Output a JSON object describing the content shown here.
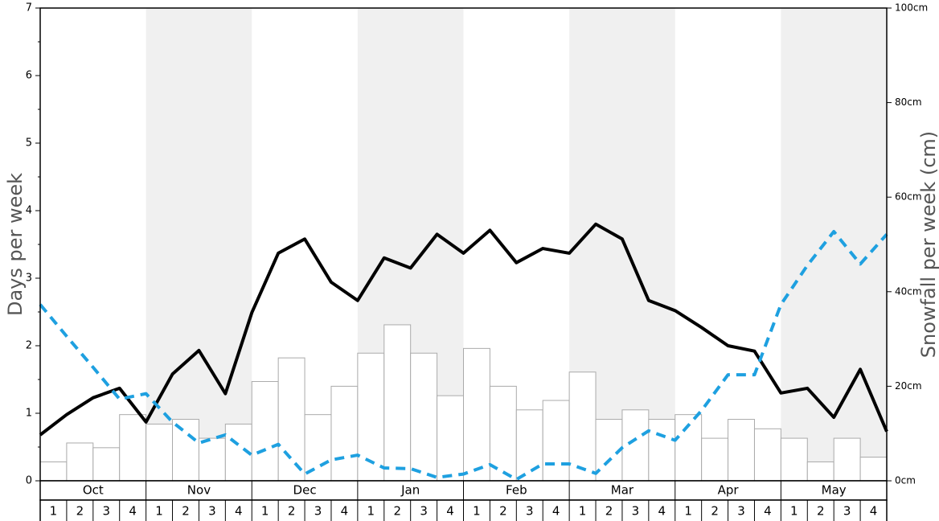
{
  "chart_data": {
    "type": "bar-line",
    "ylabel": "Days per week",
    "y2label": "Snowfall per week (cm)",
    "months": [
      "Oct",
      "Nov",
      "Dec",
      "Jan",
      "Feb",
      "Mar",
      "Apr",
      "May"
    ],
    "categories": [
      "1",
      "2",
      "3",
      "4",
      "1",
      "2",
      "3",
      "4",
      "1",
      "2",
      "3",
      "4",
      "1",
      "2",
      "3",
      "4",
      "1",
      "2",
      "3",
      "4",
      "1",
      "2",
      "3",
      "4",
      "1",
      "2",
      "3",
      "4",
      "1",
      "2",
      "3",
      "4"
    ],
    "ylim": [
      0,
      7
    ],
    "yticks": [
      0,
      1,
      2,
      3,
      4,
      5,
      6,
      7
    ],
    "yminorticks": [
      0.5,
      1.5,
      2.5,
      3.5,
      4.5,
      5.5,
      6.5
    ],
    "y2lim": [
      0,
      100
    ],
    "y2ticks": [
      {
        "value": 0,
        "label": "0cm"
      },
      {
        "value": 20,
        "label": "20cm"
      },
      {
        "value": 40,
        "label": "40cm"
      },
      {
        "value": 60,
        "label": "60cm"
      },
      {
        "value": 80,
        "label": "80cm"
      },
      {
        "value": 100,
        "label": "100cm"
      }
    ],
    "xlim": [
      0,
      32
    ],
    "shade_color": "#f0f0f0",
    "bars": {
      "axis": "y2",
      "color": "#ffffff",
      "stroke": "#aaaaaa",
      "values": [
        4,
        8,
        7,
        14,
        12,
        13,
        9,
        12,
        21,
        26,
        14,
        20,
        27,
        33,
        27,
        18,
        28,
        20,
        15,
        17,
        23,
        13,
        15,
        13,
        14,
        9,
        13,
        11,
        9,
        4,
        9,
        5
      ]
    },
    "series": [
      {
        "color": "#000000",
        "dashed": false,
        "x": [
          0,
          1,
          2,
          3,
          4,
          5,
          6,
          7,
          8,
          9,
          10,
          11,
          12,
          13,
          14,
          15,
          16,
          17,
          18,
          19,
          20,
          21,
          22,
          23,
          24,
          25,
          26,
          27,
          28,
          29,
          30,
          31,
          32
        ],
        "values": [
          0.68,
          0.98,
          1.23,
          1.37,
          0.87,
          1.58,
          1.93,
          1.29,
          2.49,
          3.37,
          3.58,
          2.94,
          2.67,
          3.3,
          3.15,
          3.65,
          3.37,
          3.71,
          3.23,
          3.44,
          3.37,
          3.8,
          3.58,
          2.67,
          2.52,
          2.27,
          2.0,
          1.92,
          1.3,
          1.37,
          0.94,
          1.65,
          0.73
        ]
      },
      {
        "color": "#1ea0e0",
        "dashed": true,
        "x": [
          0,
          1,
          2,
          3,
          4,
          5,
          6,
          7,
          8,
          9,
          10,
          11,
          12,
          13,
          14,
          15,
          16,
          17,
          18,
          19,
          20,
          21,
          22,
          23,
          24,
          25,
          26,
          27,
          28,
          29,
          30,
          31,
          32
        ],
        "values": [
          2.61,
          2.14,
          1.68,
          1.21,
          1.29,
          0.87,
          0.56,
          0.68,
          0.38,
          0.54,
          0.1,
          0.31,
          0.38,
          0.19,
          0.18,
          0.05,
          0.1,
          0.24,
          0.02,
          0.25,
          0.25,
          0.11,
          0.49,
          0.74,
          0.6,
          1.04,
          1.57,
          1.57,
          2.61,
          3.19,
          3.69,
          3.21,
          3.65
        ]
      }
    ]
  }
}
